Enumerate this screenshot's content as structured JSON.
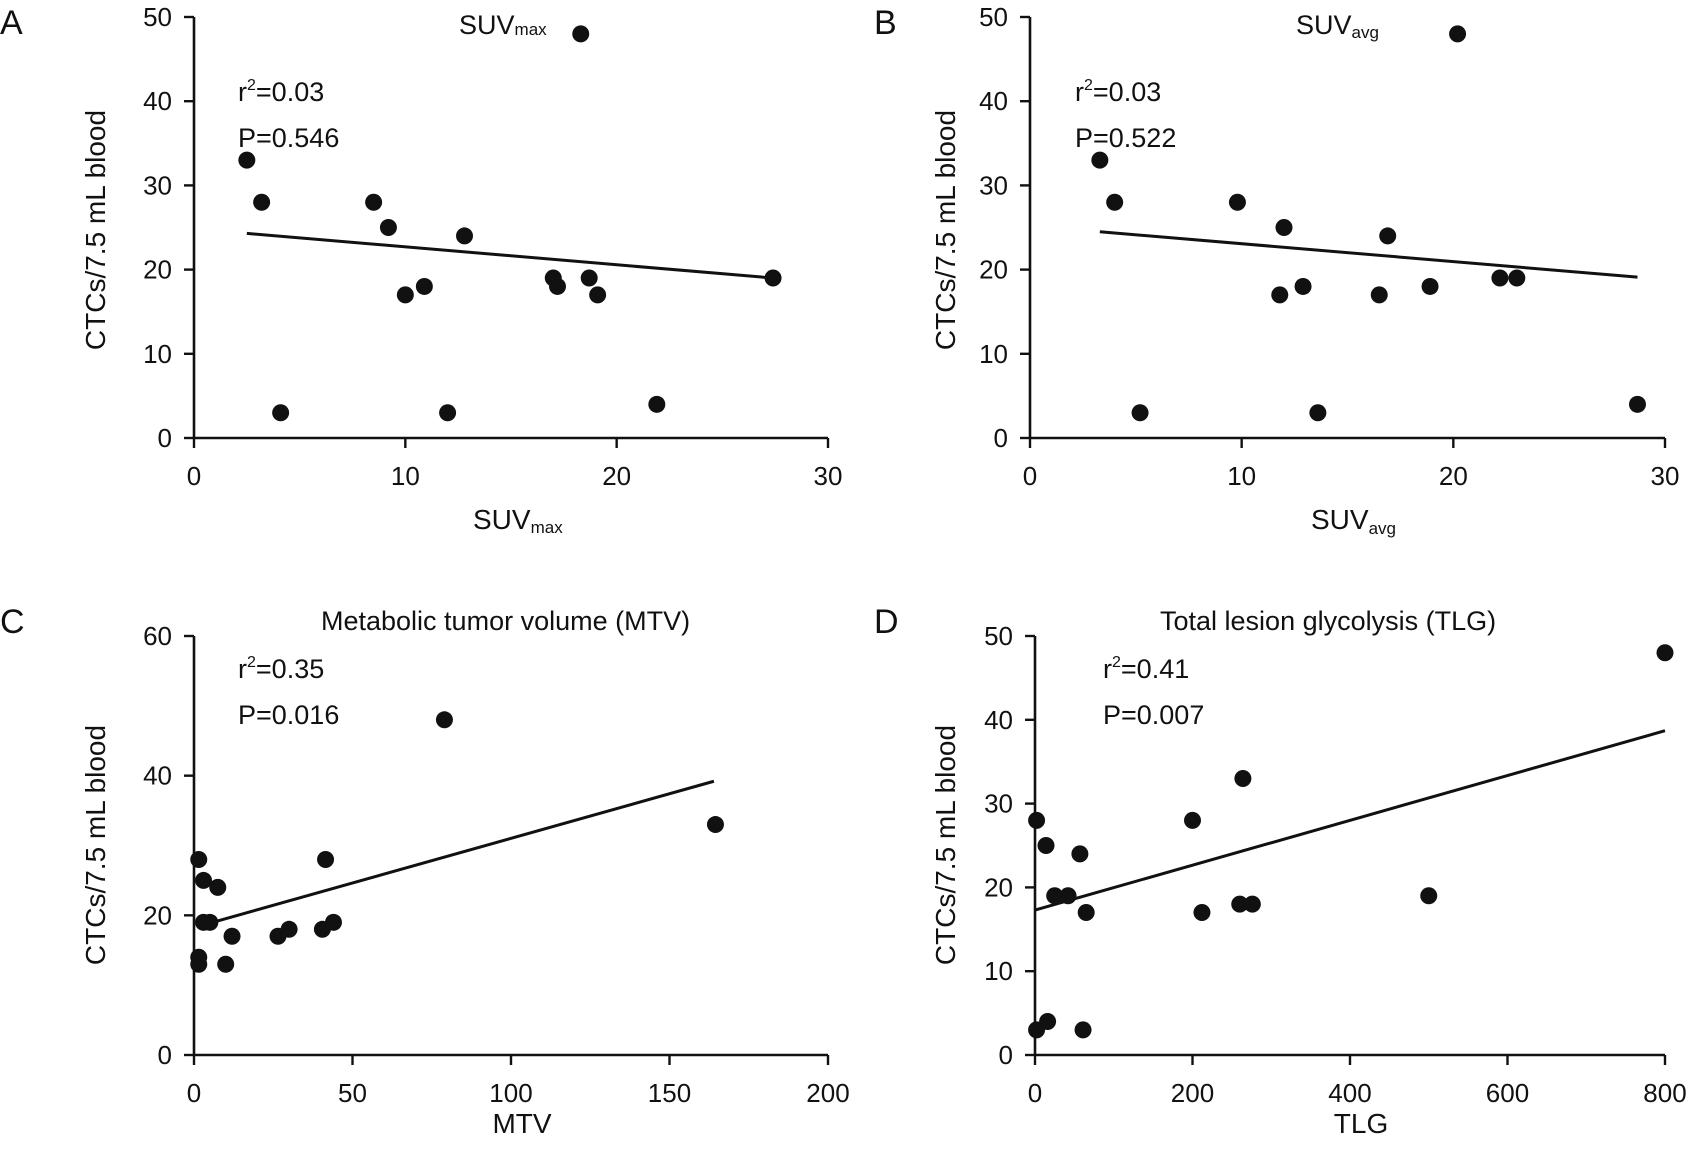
{
  "chart_data": [
    {
      "panel": "A",
      "type": "scatter",
      "title": "SUV",
      "title_sub": "max",
      "xlabel": "SUV",
      "xlabel_sub": "max",
      "ylabel": "CTCs/7.5 mL blood",
      "xlim": [
        0,
        30
      ],
      "ylim": [
        0,
        50
      ],
      "xticks": [
        0,
        10,
        20,
        30
      ],
      "yticks": [
        0,
        10,
        20,
        30,
        40,
        50
      ],
      "r2_label": "r",
      "r2_value": "=0.03",
      "p_text": "P=0.546",
      "points": [
        {
          "x": 2.5,
          "y": 33
        },
        {
          "x": 3.2,
          "y": 28
        },
        {
          "x": 4.1,
          "y": 3
        },
        {
          "x": 8.5,
          "y": 28
        },
        {
          "x": 9.2,
          "y": 25
        },
        {
          "x": 10.0,
          "y": 17
        },
        {
          "x": 10.9,
          "y": 18
        },
        {
          "x": 12.0,
          "y": 3
        },
        {
          "x": 12.8,
          "y": 24
        },
        {
          "x": 17.0,
          "y": 19
        },
        {
          "x": 17.2,
          "y": 18
        },
        {
          "x": 18.3,
          "y": 48
        },
        {
          "x": 18.7,
          "y": 19
        },
        {
          "x": 19.1,
          "y": 17
        },
        {
          "x": 21.9,
          "y": 4
        },
        {
          "x": 27.4,
          "y": 19
        }
      ],
      "fit_line": [
        {
          "x": 2.5,
          "y": 24.3
        },
        {
          "x": 27.4,
          "y": 19.0
        }
      ]
    },
    {
      "panel": "B",
      "type": "scatter",
      "title": "SUV",
      "title_sub": "avg",
      "xlabel": "SUV",
      "xlabel_sub": "avg",
      "ylabel": "CTCs/7.5 mL blood",
      "xlim": [
        0,
        30
      ],
      "ylim": [
        0,
        50
      ],
      "xticks": [
        0,
        10,
        20,
        30
      ],
      "yticks": [
        0,
        10,
        20,
        30,
        40,
        50
      ],
      "r2_label": "r",
      "r2_value": "=0.03",
      "p_text": "P=0.522",
      "points": [
        {
          "x": 3.3,
          "y": 33
        },
        {
          "x": 4.0,
          "y": 28
        },
        {
          "x": 5.2,
          "y": 3
        },
        {
          "x": 9.8,
          "y": 28
        },
        {
          "x": 11.8,
          "y": 17
        },
        {
          "x": 12.0,
          "y": 25
        },
        {
          "x": 12.9,
          "y": 18
        },
        {
          "x": 13.6,
          "y": 3
        },
        {
          "x": 16.5,
          "y": 17
        },
        {
          "x": 16.9,
          "y": 24
        },
        {
          "x": 18.9,
          "y": 18
        },
        {
          "x": 20.2,
          "y": 48
        },
        {
          "x": 22.2,
          "y": 19
        },
        {
          "x": 23.0,
          "y": 19
        },
        {
          "x": 28.7,
          "y": 4
        }
      ],
      "fit_line": [
        {
          "x": 3.3,
          "y": 24.5
        },
        {
          "x": 28.7,
          "y": 19.1
        }
      ]
    },
    {
      "panel": "C",
      "type": "scatter",
      "title": "Metabolic tumor volume (MTV)",
      "xlabel": "MTV",
      "ylabel": "CTCs/7.5 mL blood",
      "xlim": [
        0,
        200
      ],
      "ylim": [
        0,
        60
      ],
      "xticks": [
        0,
        50,
        100,
        150,
        200
      ],
      "yticks": [
        0,
        20,
        40,
        60
      ],
      "r2_label": "r",
      "r2_value": "=0.35",
      "p_text": "P=0.016",
      "points": [
        {
          "x": 1.5,
          "y": 28
        },
        {
          "x": 1.5,
          "y": 14
        },
        {
          "x": 1.5,
          "y": 13
        },
        {
          "x": 3,
          "y": 25
        },
        {
          "x": 3,
          "y": 19
        },
        {
          "x": 5,
          "y": 19
        },
        {
          "x": 7.5,
          "y": 24
        },
        {
          "x": 10,
          "y": 13
        },
        {
          "x": 12,
          "y": 17
        },
        {
          "x": 26.5,
          "y": 17
        },
        {
          "x": 30,
          "y": 18
        },
        {
          "x": 40.5,
          "y": 18
        },
        {
          "x": 41.5,
          "y": 28
        },
        {
          "x": 44,
          "y": 19
        },
        {
          "x": 79,
          "y": 48
        },
        {
          "x": 164.5,
          "y": 33
        }
      ],
      "fit_line": [
        {
          "x": 2,
          "y": 18.5
        },
        {
          "x": 164,
          "y": 39.2
        }
      ]
    },
    {
      "panel": "D",
      "type": "scatter",
      "title": "Total lesion glycolysis (TLG)",
      "xlabel": "TLG",
      "ylabel": "CTCs/7.5 mL blood",
      "xlim": [
        0,
        800
      ],
      "ylim": [
        0,
        50
      ],
      "xticks": [
        0,
        200,
        400,
        600,
        800
      ],
      "yticks": [
        0,
        10,
        20,
        30,
        40,
        50
      ],
      "r2_label": "r",
      "r2_value": "=0.41",
      "p_text": "P=0.007",
      "points": [
        {
          "x": 2,
          "y": 28
        },
        {
          "x": 2,
          "y": 3
        },
        {
          "x": 14,
          "y": 25
        },
        {
          "x": 16,
          "y": 4
        },
        {
          "x": 25,
          "y": 19
        },
        {
          "x": 42,
          "y": 19
        },
        {
          "x": 57,
          "y": 24
        },
        {
          "x": 61,
          "y": 3
        },
        {
          "x": 65,
          "y": 17
        },
        {
          "x": 200,
          "y": 28
        },
        {
          "x": 212,
          "y": 17
        },
        {
          "x": 260,
          "y": 18
        },
        {
          "x": 264,
          "y": 33
        },
        {
          "x": 276,
          "y": 18
        },
        {
          "x": 500,
          "y": 19
        },
        {
          "x": 800,
          "y": 48
        }
      ],
      "fit_line": [
        {
          "x": 0,
          "y": 17.3
        },
        {
          "x": 800,
          "y": 38.7
        }
      ]
    }
  ]
}
